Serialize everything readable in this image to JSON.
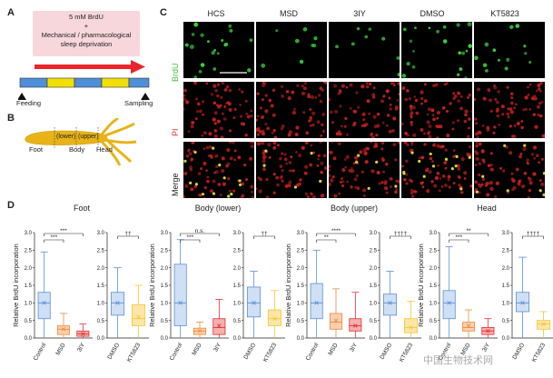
{
  "panel_labels": {
    "A": "A",
    "B": "B",
    "C": "C",
    "D": "D"
  },
  "panelA": {
    "box_line1": "5 mM BrdU",
    "box_plus": "+",
    "box_line2": "Mechanical / pharmacological",
    "box_line3": "sleep deprivation",
    "feeding": "Feeding",
    "sampling": "Sampling",
    "colors": {
      "box_bg": "#f7d7dc",
      "arrow": "#e8262b",
      "seg_blue": "#4f8ed9",
      "seg_yellow": "#f2e100"
    },
    "segments": [
      "blue",
      "yellow",
      "blue",
      "yellow",
      "blue"
    ]
  },
  "panelB": {
    "foot": "Foot",
    "body": "Body",
    "head": "Head",
    "lower": "(lower)",
    "upper": "(upper)",
    "color": "#e7b317"
  },
  "panelC": {
    "columns": [
      "HCS",
      "MSD",
      "3IY",
      "DMSO",
      "KT5823"
    ],
    "rows": [
      {
        "label": "BrdU",
        "color": "#3fbf3f"
      },
      {
        "label": "PI",
        "color": "#e03030"
      },
      {
        "label": "Merge",
        "color": "#222222"
      }
    ],
    "brdu_density": [
      0.9,
      0.35,
      0.35,
      0.9,
      0.6
    ]
  },
  "panelD": {
    "ylabel": "Relative BrdU incorporation",
    "yticks": [
      "0.0",
      "0.5",
      "1.0",
      "1.5",
      "2.0",
      "2.5",
      "3.0"
    ],
    "groups": [
      {
        "title": "Foot",
        "left": {
          "categories": [
            "Control",
            "MSD",
            "3IY"
          ],
          "sig": [
            "***",
            "***"
          ],
          "boxes": [
            {
              "q1": 0.55,
              "med": 1.0,
              "q3": 1.3,
              "lo": 0.0,
              "hi": 2.45,
              "mean": 1.0
            },
            {
              "q1": 0.1,
              "med": 0.25,
              "q3": 0.35,
              "lo": 0.0,
              "hi": 0.7,
              "mean": 0.25
            },
            {
              "q1": 0.05,
              "med": 0.12,
              "q3": 0.2,
              "lo": 0.0,
              "hi": 0.4,
              "mean": 0.12
            }
          ]
        },
        "right": {
          "categories": [
            "DMSO",
            "KT5823"
          ],
          "sig": [
            "††"
          ],
          "boxes": [
            {
              "q1": 0.65,
              "med": 1.0,
              "q3": 1.3,
              "lo": 0.0,
              "hi": 2.0,
              "mean": 1.0
            },
            {
              "q1": 0.35,
              "med": 0.55,
              "q3": 0.95,
              "lo": 0.0,
              "hi": 1.5,
              "mean": 0.6
            }
          ]
        }
      },
      {
        "title": "Body (lower)",
        "left": {
          "categories": [
            "Control",
            "MSD",
            "3IY"
          ],
          "sig": [
            "***",
            "n.s."
          ],
          "boxes": [
            {
              "q1": 0.35,
              "med": 1.0,
              "q3": 2.1,
              "lo": 0.0,
              "hi": 2.8,
              "mean": 1.0
            },
            {
              "q1": 0.1,
              "med": 0.2,
              "q3": 0.28,
              "lo": 0.0,
              "hi": 0.45,
              "mean": 0.2
            },
            {
              "q1": 0.1,
              "med": 0.3,
              "q3": 0.55,
              "lo": 0.0,
              "hi": 1.1,
              "mean": 0.35
            }
          ]
        },
        "right": {
          "categories": [
            "DMSO",
            "KT5823"
          ],
          "sig": [
            "††"
          ],
          "boxes": [
            {
              "q1": 0.6,
              "med": 1.0,
              "q3": 1.45,
              "lo": 0.0,
              "hi": 1.9,
              "mean": 1.0
            },
            {
              "q1": 0.35,
              "med": 0.55,
              "q3": 0.8,
              "lo": 0.0,
              "hi": 1.35,
              "mean": 0.55
            }
          ]
        }
      },
      {
        "title": "Body (upper)",
        "left": {
          "categories": [
            "Control",
            "MSD",
            "3IY"
          ],
          "sig": [
            "**",
            "****"
          ],
          "boxes": [
            {
              "q1": 0.55,
              "med": 1.0,
              "q3": 1.55,
              "lo": 0.0,
              "hi": 2.5,
              "mean": 1.0
            },
            {
              "q1": 0.25,
              "med": 0.45,
              "q3": 0.7,
              "lo": 0.0,
              "hi": 1.4,
              "mean": 0.5
            },
            {
              "q1": 0.2,
              "med": 0.35,
              "q3": 0.55,
              "lo": 0.0,
              "hi": 1.3,
              "mean": 0.35
            }
          ]
        },
        "right": {
          "categories": [
            "DMSO",
            "KT5823"
          ],
          "sig": [
            "††††"
          ],
          "boxes": [
            {
              "q1": 0.65,
              "med": 1.0,
              "q3": 1.25,
              "lo": 0.0,
              "hi": 1.9,
              "mean": 1.0
            },
            {
              "q1": 0.15,
              "med": 0.3,
              "q3": 0.55,
              "lo": 0.0,
              "hi": 1.05,
              "mean": 0.3
            }
          ]
        }
      },
      {
        "title": "Head",
        "left": {
          "categories": [
            "Control",
            "MSD",
            "3IY"
          ],
          "sig": [
            "***",
            "**"
          ],
          "boxes": [
            {
              "q1": 0.55,
              "med": 1.0,
              "q3": 1.35,
              "lo": 0.0,
              "hi": 2.6,
              "mean": 1.0
            },
            {
              "q1": 0.2,
              "med": 0.3,
              "q3": 0.45,
              "lo": 0.0,
              "hi": 0.8,
              "mean": 0.35
            },
            {
              "q1": 0.1,
              "med": 0.2,
              "q3": 0.3,
              "lo": 0.0,
              "hi": 0.55,
              "mean": 0.2
            }
          ]
        },
        "right": {
          "categories": [
            "DMSO",
            "KT5823"
          ],
          "sig": [
            "††††"
          ],
          "boxes": [
            {
              "q1": 0.75,
              "med": 1.0,
              "q3": 1.3,
              "lo": 0.0,
              "hi": 2.3,
              "mean": 1.0
            },
            {
              "q1": 0.25,
              "med": 0.4,
              "q3": 0.5,
              "lo": 0.0,
              "hi": 0.75,
              "mean": 0.4
            }
          ]
        }
      }
    ],
    "colors": {
      "Control": "#5b8fd6",
      "MSD": "#f08a3a",
      "3IY": "#e02e2e",
      "DMSO": "#5b8fd6",
      "KT5823": "#f3c63a"
    },
    "fills": {
      "Control": "#cfe0f5",
      "MSD": "#fbd0b0",
      "3IY": "#f5b0b0",
      "DMSO": "#cfe0f5",
      "KT5823": "#fbe6a8"
    }
  },
  "watermark": "中国生物技术网"
}
